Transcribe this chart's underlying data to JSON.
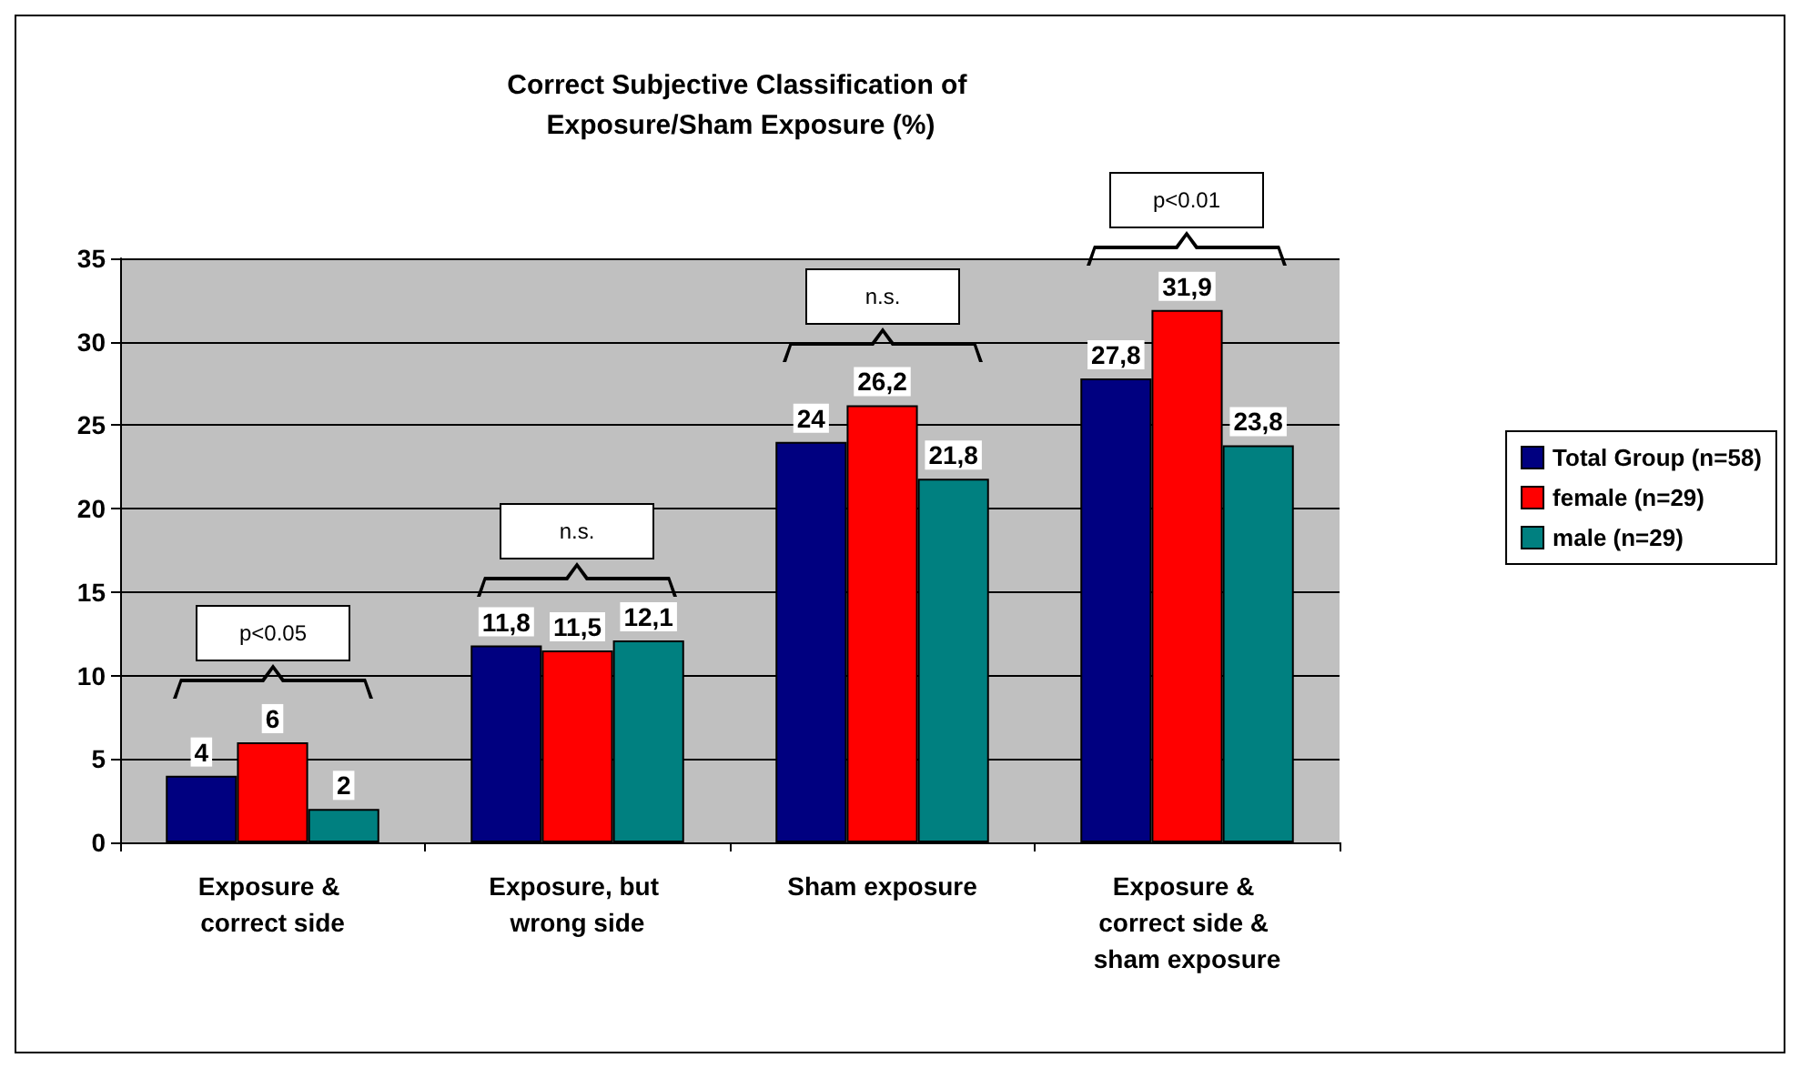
{
  "chart_data": {
    "type": "bar",
    "title": "Correct Subjective Classification of Exposure/Sham Exposure (%)",
    "categories": [
      "Exposure & correct side",
      "Exposure, but wrong side",
      "Sham exposure",
      "Exposure & correct side & sham exposure"
    ],
    "series": [
      {
        "name": "Total Group (n=58)",
        "color": "#000080",
        "values": [
          4,
          11.8,
          24,
          27.8
        ],
        "value_labels": [
          "4",
          "11,8",
          "24",
          "27,8"
        ]
      },
      {
        "name": "female (n=29)",
        "color": "#ff0000",
        "values": [
          6,
          11.5,
          26.2,
          31.9
        ],
        "value_labels": [
          "6",
          "11,5",
          "26,2",
          "31,9"
        ]
      },
      {
        "name": "male (n=29)",
        "color": "#008080",
        "values": [
          2,
          12.1,
          21.8,
          23.8
        ],
        "value_labels": [
          "2",
          "12,1",
          "21,8",
          "23,8"
        ]
      }
    ],
    "ylim": [
      0,
      35
    ],
    "yticks": [
      0,
      5,
      10,
      15,
      20,
      25,
      30,
      35
    ],
    "grid": "y",
    "legend": "right",
    "annotations": [
      "p<0.05",
      "n.s.",
      "n.s.",
      "p<0.01"
    ]
  }
}
